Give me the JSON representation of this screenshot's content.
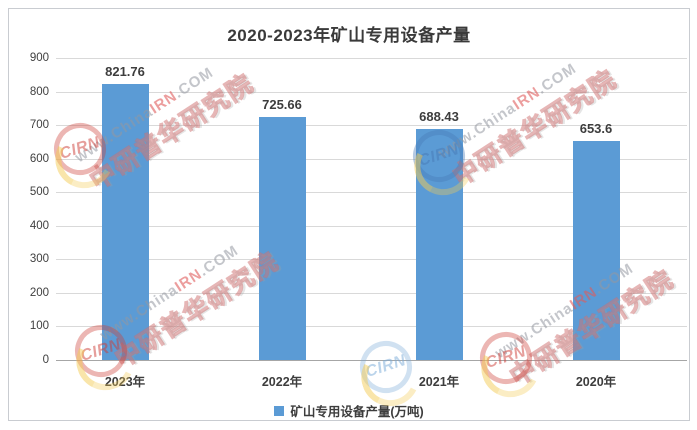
{
  "title": "2020-2023年矿山专用设备产量",
  "chart_data": {
    "type": "bar",
    "title": "2020-2023年矿山专用设备产量",
    "categories": [
      "2023年",
      "2022年",
      "2021年",
      "2020年"
    ],
    "values": [
      821.76,
      725.66,
      688.43,
      653.6
    ],
    "value_labels": [
      "821.76",
      "725.66",
      "688.43",
      "653.6"
    ],
    "legend": "矿山专用设备产量(万吨)",
    "legend_position": "bottom",
    "xlabel": "",
    "ylabel": "",
    "ylim": [
      0,
      900
    ],
    "ytick_interval": 100,
    "yticks": [
      0,
      100,
      200,
      300,
      400,
      500,
      600,
      700,
      800,
      900
    ],
    "grid": true,
    "bar_color": "#5B9BD5"
  },
  "watermark": {
    "line1_prefix": "www.China",
    "line1_highlight": "IRN",
    "line1_suffix": ".COM",
    "line2": "中研普华研究院",
    "badge_text": "CIRN"
  },
  "colors": {
    "bar": "#5B9BD5",
    "gridline": "#d9d9d9",
    "axis_line": "#a6a6a6",
    "text": "#3d3d3d",
    "frame_border": "#c9ccd1",
    "watermark_gray": "#9498a0",
    "watermark_red": "#ce3e37"
  }
}
